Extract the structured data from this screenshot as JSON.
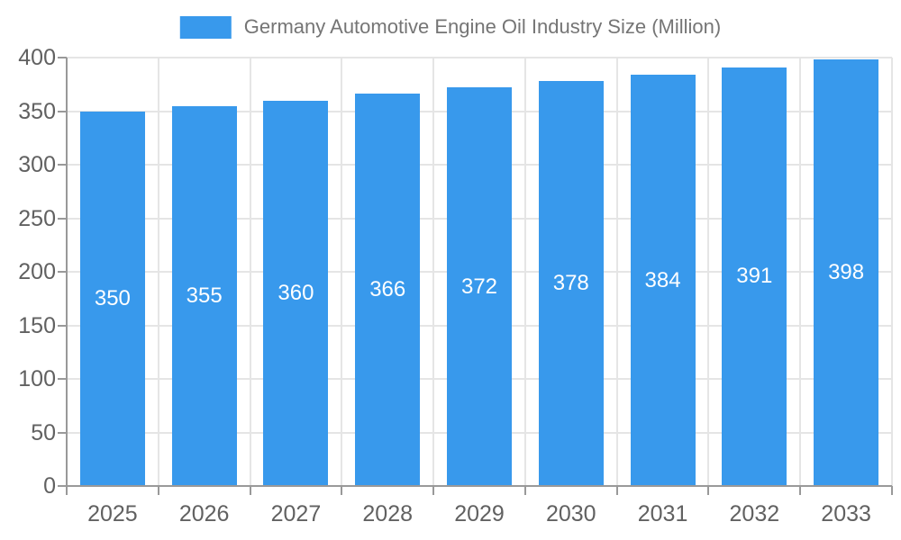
{
  "chart_data": {
    "type": "bar",
    "title": "Germany Automotive Engine Oil Industry Size (Million)",
    "series_name": "Germany Automotive Engine Oil Industry Size (Million)",
    "categories": [
      "2025",
      "2026",
      "2027",
      "2028",
      "2029",
      "2030",
      "2031",
      "2032",
      "2033"
    ],
    "values": [
      350,
      355,
      360,
      366,
      372,
      378,
      384,
      391,
      398
    ],
    "xlabel": "",
    "ylabel": "",
    "ylim": [
      0,
      400
    ],
    "yticks": [
      0,
      50,
      100,
      150,
      200,
      250,
      300,
      350,
      400
    ],
    "grid": true,
    "legend_position": "top",
    "colors": {
      "bar": "#3899EC",
      "bar_value_label": "#ffffff",
      "grid_line": "#e5e5e5",
      "axis_line": "#999999",
      "tick_label": "#616161",
      "legend_text": "#757575",
      "background": "#ffffff"
    }
  }
}
